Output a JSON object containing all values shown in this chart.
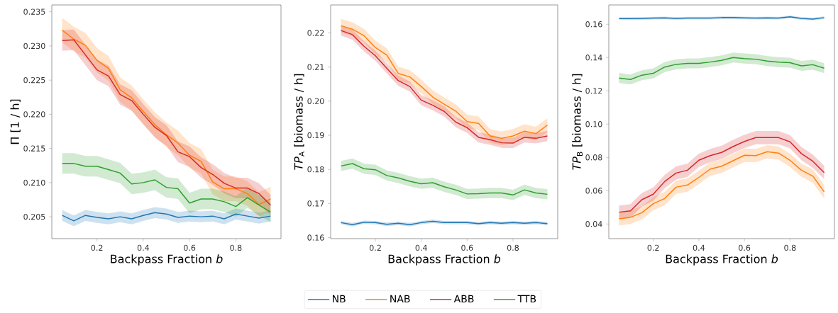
{
  "chart_data": [
    {
      "type": "line",
      "xlabel": "Backpass Fraction *b*",
      "ylabel": "Π [1 / h]",
      "legend": false,
      "x": [
        0.05,
        0.1,
        0.15,
        0.2,
        0.25,
        0.3,
        0.35,
        0.4,
        0.45,
        0.5,
        0.55,
        0.6,
        0.65,
        0.7,
        0.75,
        0.8,
        0.85,
        0.9,
        0.95
      ],
      "xlim": [
        0.005,
        0.995
      ],
      "ylim": [
        0.2018,
        0.236
      ],
      "xticks": [
        0.2,
        0.4,
        0.6,
        0.8
      ],
      "yticks": [
        {
          "value": 0.205,
          "label": "0.205"
        },
        {
          "value": 0.21,
          "label": "0.210"
        },
        {
          "value": 0.215,
          "label": "0.215"
        },
        {
          "value": 0.22,
          "label": "0.220"
        },
        {
          "value": 0.225,
          "label": "0.225"
        },
        {
          "value": 0.23,
          "label": "0.230"
        },
        {
          "value": 0.235,
          "label": "0.235"
        }
      ],
      "series": [
        {
          "color": "#1f77b4",
          "values": [
            0.2052,
            0.2044,
            0.2052,
            0.2049,
            0.2047,
            0.205,
            0.2047,
            0.2052,
            0.2056,
            0.2054,
            0.2049,
            0.2051,
            0.205,
            0.2051,
            0.2047,
            0.2054,
            0.2051,
            0.2048,
            0.2051
          ],
          "lower": [
            0.2044,
            0.2036,
            0.2044,
            0.2041,
            0.2039,
            0.2042,
            0.2039,
            0.2044,
            0.2048,
            0.2046,
            0.2041,
            0.2043,
            0.2042,
            0.2043,
            0.2039,
            0.2046,
            0.2043,
            0.204,
            0.2043
          ],
          "upper": [
            0.206,
            0.2052,
            0.206,
            0.2057,
            0.2055,
            0.2058,
            0.2055,
            0.206,
            0.2064,
            0.2062,
            0.2057,
            0.2059,
            0.2058,
            0.2059,
            0.2055,
            0.2062,
            0.2059,
            0.2056,
            0.2059
          ]
        },
        {
          "color": "#ff7f0e",
          "values": [
            0.2323,
            0.231,
            0.2301,
            0.2279,
            0.2267,
            0.2236,
            0.2224,
            0.2204,
            0.2185,
            0.217,
            0.2158,
            0.214,
            0.2131,
            0.2101,
            0.2091,
            0.2091,
            0.2084,
            0.2068,
            0.2076
          ],
          "lower": [
            0.2305,
            0.2292,
            0.2283,
            0.2261,
            0.2249,
            0.2218,
            0.2206,
            0.2186,
            0.2167,
            0.2152,
            0.214,
            0.2122,
            0.2113,
            0.2083,
            0.2073,
            0.2073,
            0.2066,
            0.205,
            0.2058
          ],
          "upper": [
            0.2341,
            0.2328,
            0.2319,
            0.2297,
            0.2285,
            0.2254,
            0.2242,
            0.2222,
            0.2203,
            0.2188,
            0.2176,
            0.2158,
            0.2149,
            0.2119,
            0.2109,
            0.2109,
            0.2102,
            0.2086,
            0.2094
          ]
        },
        {
          "color": "#d62728",
          "values": [
            0.2308,
            0.2309,
            0.2287,
            0.2265,
            0.2256,
            0.2229,
            0.222,
            0.22,
            0.2181,
            0.2169,
            0.2145,
            0.2138,
            0.2122,
            0.2112,
            0.2099,
            0.2092,
            0.2092,
            0.2084,
            0.2067
          ],
          "lower": [
            0.2293,
            0.2294,
            0.2272,
            0.225,
            0.2241,
            0.2214,
            0.2205,
            0.2185,
            0.2166,
            0.2154,
            0.213,
            0.2123,
            0.2107,
            0.2097,
            0.2084,
            0.2077,
            0.2077,
            0.2069,
            0.2052
          ],
          "upper": [
            0.2323,
            0.2324,
            0.2302,
            0.228,
            0.2271,
            0.2244,
            0.2235,
            0.2215,
            0.2196,
            0.2184,
            0.216,
            0.2153,
            0.2137,
            0.2127,
            0.2114,
            0.2107,
            0.2107,
            0.2099,
            0.2082
          ]
        },
        {
          "color": "#2ca02c",
          "values": [
            0.2128,
            0.2128,
            0.2124,
            0.2124,
            0.2119,
            0.2114,
            0.2098,
            0.21,
            0.2104,
            0.2093,
            0.2091,
            0.207,
            0.2076,
            0.2076,
            0.2072,
            0.2065,
            0.2078,
            0.2067,
            0.2057
          ],
          "lower": [
            0.2113,
            0.2113,
            0.2109,
            0.2109,
            0.2104,
            0.2099,
            0.2083,
            0.2085,
            0.2089,
            0.2078,
            0.2076,
            0.2055,
            0.2061,
            0.2061,
            0.2057,
            0.205,
            0.2063,
            0.2052,
            0.2042
          ],
          "upper": [
            0.2143,
            0.2143,
            0.2139,
            0.2139,
            0.2134,
            0.2129,
            0.2113,
            0.2115,
            0.2119,
            0.2108,
            0.2106,
            0.2085,
            0.2091,
            0.2091,
            0.2087,
            0.208,
            0.2093,
            0.2082,
            0.2072
          ]
        }
      ]
    },
    {
      "type": "line",
      "xlabel": "Backpass Fraction *b*",
      "ylabel": "*TP*$_{A}$ [biomass / h]",
      "legend": "bottom",
      "x": [
        0.05,
        0.1,
        0.15,
        0.2,
        0.25,
        0.3,
        0.35,
        0.4,
        0.45,
        0.5,
        0.55,
        0.6,
        0.65,
        0.7,
        0.75,
        0.8,
        0.85,
        0.9,
        0.95
      ],
      "xlim": [
        0.005,
        0.995
      ],
      "ylim": [
        0.1597,
        0.2282
      ],
      "xticks": [
        0.2,
        0.4,
        0.6,
        0.8
      ],
      "yticks": [
        {
          "value": 0.16,
          "label": "0.16"
        },
        {
          "value": 0.17,
          "label": "0.17"
        },
        {
          "value": 0.18,
          "label": "0.18"
        },
        {
          "value": 0.19,
          "label": "0.19"
        },
        {
          "value": 0.2,
          "label": "0.20"
        },
        {
          "value": 0.21,
          "label": "0.21"
        },
        {
          "value": 0.22,
          "label": "0.22"
        }
      ],
      "series": [
        {
          "name": "NB",
          "color": "#1f77b4",
          "values": [
            0.1644,
            0.1638,
            0.1645,
            0.1644,
            0.1639,
            0.1642,
            0.1638,
            0.1644,
            0.1648,
            0.1644,
            0.1644,
            0.1644,
            0.1641,
            0.1644,
            0.1642,
            0.1644,
            0.1642,
            0.1644,
            0.1641
          ],
          "lower": [
            0.1639,
            0.1633,
            0.164,
            0.1639,
            0.1634,
            0.1637,
            0.1633,
            0.1639,
            0.1643,
            0.1639,
            0.1639,
            0.1639,
            0.1636,
            0.1639,
            0.1637,
            0.1639,
            0.1637,
            0.1639,
            0.1636
          ],
          "upper": [
            0.1649,
            0.1643,
            0.165,
            0.1649,
            0.1644,
            0.1647,
            0.1643,
            0.1649,
            0.1653,
            0.1649,
            0.1649,
            0.1649,
            0.1646,
            0.1649,
            0.1647,
            0.1649,
            0.1647,
            0.1649,
            0.1646
          ]
        },
        {
          "name": "NAB",
          "color": "#ff7f0e",
          "values": [
            0.2221,
            0.2211,
            0.2192,
            0.2157,
            0.2135,
            0.2081,
            0.2071,
            0.2043,
            0.2012,
            0.1991,
            0.1971,
            0.194,
            0.1935,
            0.1898,
            0.1891,
            0.1898,
            0.1912,
            0.1905,
            0.193
          ],
          "lower": [
            0.2201,
            0.2191,
            0.2172,
            0.2137,
            0.2115,
            0.2061,
            0.2051,
            0.2023,
            0.1992,
            0.1971,
            0.1951,
            0.192,
            0.1915,
            0.1878,
            0.1871,
            0.1878,
            0.1892,
            0.1885,
            0.191
          ],
          "upper": [
            0.2241,
            0.2231,
            0.2212,
            0.2177,
            0.2155,
            0.2101,
            0.2091,
            0.2063,
            0.2032,
            0.2011,
            0.1991,
            0.196,
            0.1955,
            0.1918,
            0.1911,
            0.1918,
            0.1932,
            0.1925,
            0.195
          ]
        },
        {
          "name": "ABB",
          "color": "#d62728",
          "values": [
            0.2207,
            0.2195,
            0.2161,
            0.2133,
            0.2096,
            0.206,
            0.2043,
            0.2003,
            0.1988,
            0.197,
            0.1939,
            0.1922,
            0.1894,
            0.1887,
            0.1878,
            0.1877,
            0.1894,
            0.1891,
            0.1898
          ],
          "lower": [
            0.2192,
            0.218,
            0.2146,
            0.2118,
            0.2081,
            0.2045,
            0.2028,
            0.1988,
            0.1973,
            0.1955,
            0.1924,
            0.1907,
            0.1879,
            0.1872,
            0.1863,
            0.1862,
            0.1879,
            0.1876,
            0.1883
          ],
          "upper": [
            0.2222,
            0.221,
            0.2176,
            0.2148,
            0.2111,
            0.2075,
            0.2058,
            0.2018,
            0.2003,
            0.1985,
            0.1954,
            0.1937,
            0.1909,
            0.1902,
            0.1893,
            0.1892,
            0.1909,
            0.1906,
            0.1913
          ]
        },
        {
          "name": "TTB",
          "color": "#2ca02c",
          "values": [
            0.181,
            0.1817,
            0.1802,
            0.1799,
            0.1782,
            0.1775,
            0.1765,
            0.1758,
            0.1761,
            0.1749,
            0.174,
            0.1728,
            0.1729,
            0.1731,
            0.1731,
            0.1725,
            0.174,
            0.1731,
            0.1727
          ],
          "lower": [
            0.1795,
            0.1802,
            0.1787,
            0.1784,
            0.1767,
            0.176,
            0.175,
            0.1743,
            0.1746,
            0.1734,
            0.1725,
            0.1713,
            0.1714,
            0.1716,
            0.1716,
            0.171,
            0.1725,
            0.1716,
            0.1712
          ],
          "upper": [
            0.1825,
            0.1832,
            0.1817,
            0.1814,
            0.1797,
            0.179,
            0.178,
            0.1773,
            0.1776,
            0.1764,
            0.1755,
            0.1743,
            0.1744,
            0.1746,
            0.1746,
            0.174,
            0.1755,
            0.1746,
            0.1742
          ]
        }
      ]
    },
    {
      "type": "line",
      "xlabel": "Backpass Fraction *b*",
      "ylabel": "*TP*$_{B}$ [biomass / h]",
      "legend": false,
      "x": [
        0.05,
        0.1,
        0.15,
        0.2,
        0.25,
        0.3,
        0.35,
        0.4,
        0.45,
        0.5,
        0.55,
        0.6,
        0.65,
        0.7,
        0.75,
        0.8,
        0.85,
        0.9,
        0.95
      ],
      "xlim": [
        0.005,
        0.995
      ],
      "ylim": [
        0.0312,
        0.1716
      ],
      "xticks": [
        0.2,
        0.4,
        0.6,
        0.8
      ],
      "yticks": [
        {
          "value": 0.04,
          "label": "0.04"
        },
        {
          "value": 0.06,
          "label": "0.06"
        },
        {
          "value": 0.08,
          "label": "0.08"
        },
        {
          "value": 0.1,
          "label": "0.10"
        },
        {
          "value": 0.12,
          "label": "0.12"
        },
        {
          "value": 0.14,
          "label": "0.14"
        },
        {
          "value": 0.16,
          "label": "0.16"
        }
      ],
      "series": [
        {
          "color": "#1f77b4",
          "values": [
            0.1634,
            0.1634,
            0.1635,
            0.1637,
            0.1638,
            0.1635,
            0.1637,
            0.1637,
            0.1637,
            0.164,
            0.164,
            0.1638,
            0.1637,
            0.1638,
            0.1637,
            0.1645,
            0.1635,
            0.1631,
            0.164
          ],
          "lower": [
            0.1626,
            0.1626,
            0.1627,
            0.1629,
            0.163,
            0.1627,
            0.1629,
            0.1629,
            0.1629,
            0.1632,
            0.1632,
            0.163,
            0.1629,
            0.163,
            0.1629,
            0.1637,
            0.1627,
            0.1623,
            0.1632
          ],
          "upper": [
            0.1642,
            0.1642,
            0.1643,
            0.1645,
            0.1646,
            0.1643,
            0.1645,
            0.1645,
            0.1645,
            0.1648,
            0.1648,
            0.1646,
            0.1645,
            0.1646,
            0.1645,
            0.1653,
            0.1643,
            0.1639,
            0.1648
          ]
        },
        {
          "color": "#ff7f0e",
          "values": [
            0.0431,
            0.044,
            0.0468,
            0.0522,
            0.0553,
            0.0621,
            0.0634,
            0.068,
            0.073,
            0.0747,
            0.078,
            0.0813,
            0.0811,
            0.0834,
            0.0826,
            0.0783,
            0.0723,
            0.0688,
            0.0593
          ],
          "lower": [
            0.0391,
            0.04,
            0.0428,
            0.0482,
            0.0513,
            0.0581,
            0.0594,
            0.064,
            0.069,
            0.0707,
            0.074,
            0.0773,
            0.0771,
            0.0794,
            0.0786,
            0.0743,
            0.0683,
            0.0648,
            0.0553
          ],
          "upper": [
            0.0471,
            0.048,
            0.0508,
            0.0562,
            0.0593,
            0.0661,
            0.0674,
            0.072,
            0.077,
            0.0787,
            0.082,
            0.0853,
            0.0851,
            0.0874,
            0.0866,
            0.0823,
            0.0763,
            0.0728,
            0.0633
          ]
        },
        {
          "color": "#d62728",
          "values": [
            0.0471,
            0.0479,
            0.0546,
            0.0579,
            0.0655,
            0.0706,
            0.0723,
            0.0783,
            0.0811,
            0.083,
            0.0865,
            0.0896,
            0.0919,
            0.0919,
            0.0919,
            0.0894,
            0.0823,
            0.0777,
            0.0709
          ],
          "lower": [
            0.0431,
            0.0439,
            0.0506,
            0.0539,
            0.0615,
            0.0666,
            0.0683,
            0.0743,
            0.0771,
            0.079,
            0.0825,
            0.0856,
            0.0879,
            0.0879,
            0.0879,
            0.0854,
            0.0783,
            0.0737,
            0.0669
          ],
          "upper": [
            0.0511,
            0.0519,
            0.0586,
            0.0619,
            0.0695,
            0.0746,
            0.0763,
            0.0823,
            0.0851,
            0.087,
            0.0905,
            0.0936,
            0.0959,
            0.0959,
            0.0959,
            0.0934,
            0.0863,
            0.0817,
            0.0749
          ]
        },
        {
          "color": "#2ca02c",
          "values": [
            0.1277,
            0.1268,
            0.1294,
            0.1305,
            0.1343,
            0.1359,
            0.1365,
            0.1365,
            0.1373,
            0.1383,
            0.14,
            0.1394,
            0.139,
            0.1379,
            0.1372,
            0.1369,
            0.135,
            0.1357,
            0.1336
          ],
          "lower": [
            0.1247,
            0.1238,
            0.1264,
            0.1275,
            0.1313,
            0.1329,
            0.1335,
            0.1335,
            0.1343,
            0.1353,
            0.137,
            0.1364,
            0.136,
            0.1349,
            0.1342,
            0.1339,
            0.132,
            0.1327,
            0.1306
          ],
          "upper": [
            0.1307,
            0.1298,
            0.1324,
            0.1335,
            0.1373,
            0.1389,
            0.1395,
            0.1395,
            0.1403,
            0.1413,
            0.143,
            0.1424,
            0.142,
            0.1409,
            0.1402,
            0.1399,
            0.138,
            0.1387,
            0.1366
          ]
        }
      ]
    }
  ]
}
